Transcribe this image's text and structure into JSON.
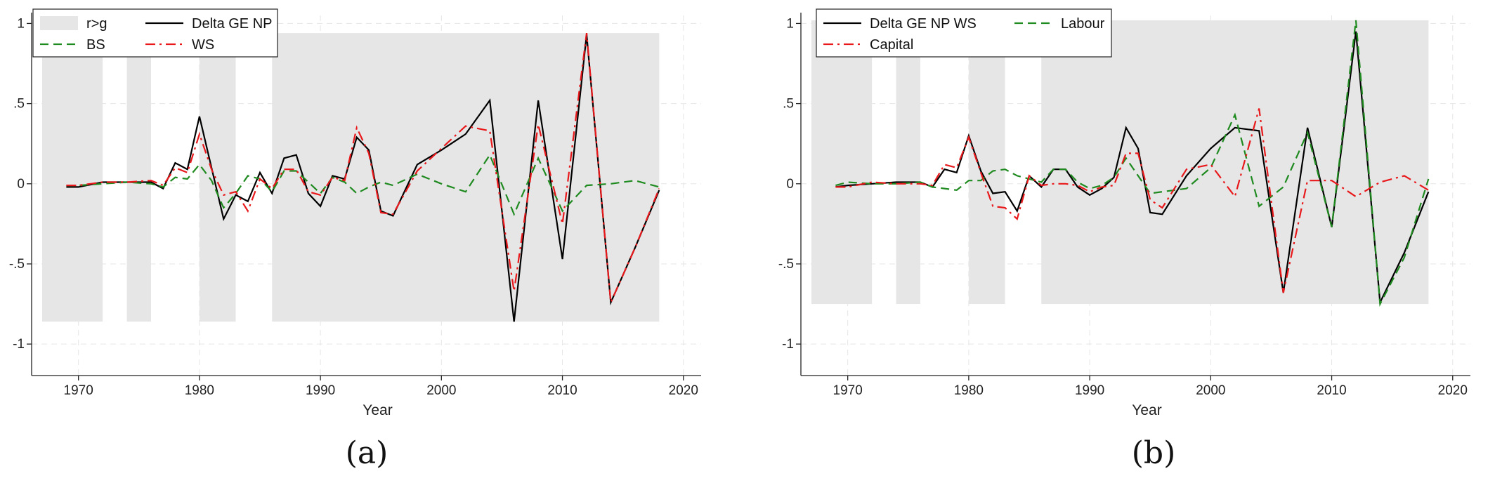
{
  "chart_data": [
    {
      "type": "line",
      "panel_label": "(a)",
      "xlabel": "Year",
      "ylabel": "",
      "xlim": [
        1967,
        2021
      ],
      "ylim": [
        -1.1,
        1.05
      ],
      "x_ticks": [
        1970,
        1980,
        1990,
        2000,
        2010,
        2020
      ],
      "y_ticks": [
        -1,
        -0.5,
        0,
        0.5,
        1
      ],
      "y_tick_labels": [
        "-1",
        "-.5",
        "0",
        ".5",
        "1"
      ],
      "shaded_label": "r>g",
      "shaded_periods": [
        [
          1967,
          1972
        ],
        [
          1974,
          1976
        ],
        [
          1980,
          1983
        ],
        [
          1986,
          2018
        ]
      ],
      "shaded_range": [
        -0.86,
        0.94
      ],
      "legend_position": "top-left",
      "series": [
        {
          "name": "Delta GE NP",
          "color": "#000000",
          "style": "solid",
          "x": [
            1969,
            1970,
            1972,
            1974,
            1976,
            1977,
            1978,
            1979,
            1980,
            1981,
            1982,
            1983,
            1984,
            1985,
            1986,
            1987,
            1988,
            1989,
            1990,
            1991,
            1992,
            1993,
            1994,
            1995,
            1996,
            1998,
            2000,
            2002,
            2004,
            2006,
            2008,
            2010,
            2012,
            2014,
            2016,
            2018
          ],
          "y": [
            -0.02,
            -0.02,
            0.01,
            0.01,
            0.01,
            -0.03,
            0.13,
            0.09,
            0.42,
            0.1,
            -0.22,
            -0.07,
            -0.11,
            0.07,
            -0.06,
            0.16,
            0.18,
            -0.06,
            -0.14,
            0.05,
            0.03,
            0.29,
            0.21,
            -0.17,
            -0.2,
            0.12,
            0.21,
            0.31,
            0.52,
            -0.86,
            0.52,
            -0.47,
            0.93,
            -0.74,
            -0.4,
            -0.04
          ]
        },
        {
          "name": "BS",
          "color": "#1f8a1f",
          "style": "dashed",
          "x": [
            1969,
            1970,
            1972,
            1974,
            1976,
            1977,
            1978,
            1979,
            1980,
            1981,
            1982,
            1983,
            1984,
            1985,
            1986,
            1987,
            1988,
            1989,
            1990,
            1991,
            1992,
            1993,
            1994,
            1995,
            1996,
            1998,
            2000,
            2002,
            2004,
            2006,
            2008,
            2010,
            2012,
            2014,
            2016,
            2018
          ],
          "y": [
            -0.01,
            -0.01,
            0.0,
            0.01,
            0.0,
            -0.02,
            0.04,
            0.03,
            0.12,
            0.02,
            -0.15,
            -0.06,
            0.05,
            0.03,
            -0.05,
            0.08,
            0.08,
            0.01,
            -0.06,
            0.04,
            0.01,
            -0.06,
            -0.02,
            0.01,
            -0.01,
            0.06,
            0.0,
            -0.05,
            0.18,
            -0.19,
            0.16,
            -0.17,
            -0.01,
            0.0,
            0.02,
            -0.02
          ]
        },
        {
          "name": "WS",
          "color": "#e8181b",
          "style": "dashdot",
          "x": [
            1969,
            1970,
            1972,
            1974,
            1976,
            1977,
            1978,
            1979,
            1980,
            1981,
            1982,
            1983,
            1984,
            1985,
            1986,
            1987,
            1988,
            1989,
            1990,
            1991,
            1992,
            1993,
            1994,
            1995,
            1996,
            1998,
            2000,
            2002,
            2004,
            2006,
            2008,
            2010,
            2012,
            2014,
            2016,
            2018
          ],
          "y": [
            -0.01,
            -0.01,
            0.01,
            0.01,
            0.02,
            -0.01,
            0.1,
            0.07,
            0.31,
            0.09,
            -0.07,
            -0.05,
            -0.17,
            0.03,
            -0.03,
            0.09,
            0.09,
            -0.05,
            -0.07,
            0.04,
            0.02,
            0.35,
            0.19,
            -0.18,
            -0.19,
            0.08,
            0.22,
            0.36,
            0.33,
            -0.67,
            0.37,
            -0.25,
            0.94,
            -0.74,
            -0.4,
            -0.03
          ]
        }
      ]
    },
    {
      "type": "line",
      "panel_label": "(b)",
      "xlabel": "Year",
      "ylabel": "",
      "xlim": [
        1967,
        2021
      ],
      "ylim": [
        -1.1,
        1.05
      ],
      "x_ticks": [
        1970,
        1980,
        1990,
        2000,
        2010,
        2020
      ],
      "y_ticks": [
        -1,
        -0.5,
        0,
        0.5,
        1
      ],
      "y_tick_labels": [
        "-1",
        "-.5",
        "0",
        ".5",
        "1"
      ],
      "shaded_periods": [
        [
          1967,
          1972
        ],
        [
          1974,
          1976
        ],
        [
          1980,
          1983
        ],
        [
          1986,
          2018
        ]
      ],
      "shaded_range": [
        -0.75,
        1.02
      ],
      "legend_position": "top-left",
      "series": [
        {
          "name": "Delta GE NP WS",
          "color": "#000000",
          "style": "solid",
          "x": [
            1969,
            1970,
            1972,
            1974,
            1976,
            1977,
            1978,
            1979,
            1980,
            1981,
            1982,
            1983,
            1984,
            1985,
            1986,
            1987,
            1988,
            1989,
            1990,
            1991,
            1992,
            1993,
            1994,
            1995,
            1996,
            1998,
            2000,
            2002,
            2004,
            2006,
            2008,
            2010,
            2012,
            2014,
            2016,
            2018
          ],
          "y": [
            -0.02,
            -0.01,
            0.0,
            0.01,
            0.01,
            -0.02,
            0.09,
            0.07,
            0.3,
            0.08,
            -0.06,
            -0.05,
            -0.17,
            0.05,
            -0.02,
            0.09,
            0.09,
            -0.02,
            -0.07,
            -0.03,
            0.04,
            0.35,
            0.22,
            -0.18,
            -0.19,
            0.05,
            0.22,
            0.35,
            0.33,
            -0.68,
            0.35,
            -0.27,
            0.95,
            -0.74,
            -0.43,
            -0.05
          ]
        },
        {
          "name": "Labour",
          "color": "#1f8a1f",
          "style": "dashed",
          "x": [
            1969,
            1970,
            1972,
            1974,
            1976,
            1977,
            1978,
            1979,
            1980,
            1981,
            1982,
            1983,
            1984,
            1985,
            1986,
            1987,
            1988,
            1989,
            1990,
            1991,
            1992,
            1993,
            1994,
            1995,
            1996,
            1998,
            2000,
            2002,
            2004,
            2006,
            2008,
            2010,
            2012,
            2014,
            2016,
            2018
          ],
          "y": [
            -0.01,
            0.01,
            0.0,
            0.0,
            0.01,
            -0.02,
            -0.03,
            -0.04,
            0.02,
            0.02,
            0.08,
            0.09,
            0.05,
            0.03,
            0.01,
            0.09,
            0.09,
            0.01,
            -0.03,
            -0.01,
            0.04,
            0.16,
            0.05,
            -0.06,
            -0.05,
            -0.03,
            0.1,
            0.43,
            -0.14,
            -0.02,
            0.32,
            -0.27,
            1.02,
            -0.75,
            -0.46,
            0.03
          ]
        },
        {
          "name": "Capital",
          "color": "#e8181b",
          "style": "dashdot",
          "x": [
            1969,
            1970,
            1972,
            1974,
            1976,
            1977,
            1978,
            1979,
            1980,
            1981,
            1982,
            1983,
            1984,
            1985,
            1986,
            1987,
            1988,
            1989,
            1990,
            1991,
            1992,
            1993,
            1994,
            1995,
            1996,
            1998,
            2000,
            2002,
            2004,
            2006,
            2008,
            2010,
            2012,
            2014,
            2016,
            2018
          ],
          "y": [
            -0.02,
            -0.02,
            0.01,
            0.0,
            0.0,
            -0.01,
            0.12,
            0.1,
            0.29,
            0.07,
            -0.14,
            -0.15,
            -0.22,
            0.05,
            -0.01,
            0.0,
            0.0,
            -0.01,
            -0.05,
            -0.02,
            -0.01,
            0.19,
            0.19,
            -0.1,
            -0.15,
            0.09,
            0.12,
            -0.08,
            0.47,
            -0.68,
            0.02,
            0.02,
            -0.08,
            0.01,
            0.05,
            -0.04
          ]
        }
      ]
    }
  ]
}
